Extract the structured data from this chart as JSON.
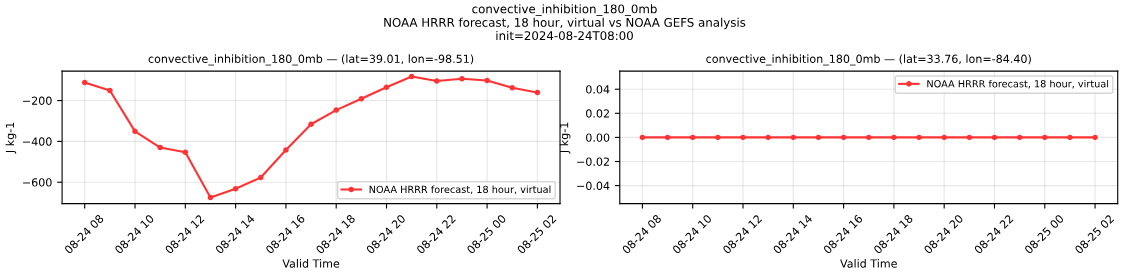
{
  "chart_data": [
    {
      "type": "line",
      "title": "convective_inhibition_180_0mb — (lat=39.01, lon=-98.51)",
      "annotations": [
        "convective_inhibition_180_0mb\nNOAA HRRR forecast, 18 hour, virtual vs NOAA GEFS analysis\ninit=2024-08-24T08:00"
      ],
      "xlabel": "Valid Time",
      "ylabel": "J kg-1",
      "x": [
        "2024-08-24T08:00",
        "2024-08-24T09:00",
        "2024-08-24T10:00",
        "2024-08-24T11:00",
        "2024-08-24T12:00",
        "2024-08-24T13:00",
        "2024-08-24T14:00",
        "2024-08-24T15:00",
        "2024-08-24T16:00",
        "2024-08-24T17:00",
        "2024-08-24T18:00",
        "2024-08-24T19:00",
        "2024-08-24T20:00",
        "2024-08-24T21:00",
        "2024-08-24T22:00",
        "2024-08-24T23:00",
        "2024-08-25T00:00",
        "2024-08-25T01:00",
        "2024-08-25T02:00"
      ],
      "series": [
        {
          "name": "NOAA HRRR forecast, 18 hour, virtual",
          "color": "#ff3333",
          "values": [
            -112,
            -151,
            -351,
            -430,
            -453,
            -675,
            -632,
            -577,
            -442,
            -316,
            -247,
            -191,
            -135,
            -82,
            -104,
            -93,
            -102,
            -137,
            -161
          ]
        }
      ],
      "xlim": [
        "2024-08-24T07:06",
        "2024-08-25T02:54"
      ],
      "xticks": [
        {
          "value": "2024-08-24T08:00",
          "label": "08-24 08"
        },
        {
          "value": "2024-08-24T10:00",
          "label": "08-24 10"
        },
        {
          "value": "2024-08-24T12:00",
          "label": "08-24 12"
        },
        {
          "value": "2024-08-24T14:00",
          "label": "08-24 14"
        },
        {
          "value": "2024-08-24T16:00",
          "label": "08-24 16"
        },
        {
          "value": "2024-08-24T18:00",
          "label": "08-24 18"
        },
        {
          "value": "2024-08-24T20:00",
          "label": "08-24 20"
        },
        {
          "value": "2024-08-24T22:00",
          "label": "08-24 22"
        },
        {
          "value": "2024-08-25T00:00",
          "label": "08-25 00"
        },
        {
          "value": "2024-08-25T02:00",
          "label": "08-25 02"
        }
      ],
      "ylim": [
        -705,
        -56
      ],
      "yticks": [
        {
          "value": -600,
          "label": "−600"
        },
        {
          "value": -400,
          "label": "−400"
        },
        {
          "value": -200,
          "label": "−200"
        }
      ],
      "grid": true,
      "legend": "bottom right",
      "marker": "circle",
      "line_style": "solid"
    },
    {
      "type": "line",
      "title": "convective_inhibition_180_0mb — (lat=33.76, lon=-84.40)",
      "xlabel": "Valid Time",
      "ylabel": "J kg-1",
      "x": [
        "2024-08-24T08:00",
        "2024-08-24T09:00",
        "2024-08-24T10:00",
        "2024-08-24T11:00",
        "2024-08-24T12:00",
        "2024-08-24T13:00",
        "2024-08-24T14:00",
        "2024-08-24T15:00",
        "2024-08-24T16:00",
        "2024-08-24T17:00",
        "2024-08-24T18:00",
        "2024-08-24T19:00",
        "2024-08-24T20:00",
        "2024-08-24T21:00",
        "2024-08-24T22:00",
        "2024-08-24T23:00",
        "2024-08-25T00:00",
        "2024-08-25T01:00",
        "2024-08-25T02:00"
      ],
      "series": [
        {
          "name": "NOAA HRRR forecast, 18 hour, virtual",
          "color": "#ff3333",
          "values": [
            0,
            0,
            0,
            0,
            0,
            0,
            0,
            0,
            0,
            0,
            0,
            0,
            0,
            0,
            0,
            0,
            0,
            0,
            0
          ]
        }
      ],
      "xlim": [
        "2024-08-24T07:06",
        "2024-08-25T02:54"
      ],
      "xticks": [
        {
          "value": "2024-08-24T08:00",
          "label": "08-24 08"
        },
        {
          "value": "2024-08-24T10:00",
          "label": "08-24 10"
        },
        {
          "value": "2024-08-24T12:00",
          "label": "08-24 12"
        },
        {
          "value": "2024-08-24T14:00",
          "label": "08-24 14"
        },
        {
          "value": "2024-08-24T16:00",
          "label": "08-24 16"
        },
        {
          "value": "2024-08-24T18:00",
          "label": "08-24 18"
        },
        {
          "value": "2024-08-24T20:00",
          "label": "08-24 20"
        },
        {
          "value": "2024-08-24T22:00",
          "label": "08-24 22"
        },
        {
          "value": "2024-08-25T00:00",
          "label": "08-25 00"
        },
        {
          "value": "2024-08-25T02:00",
          "label": "08-25 02"
        }
      ],
      "ylim": [
        -0.055,
        0.055
      ],
      "yticks": [
        {
          "value": -0.04,
          "label": "−0.04"
        },
        {
          "value": -0.02,
          "label": "−0.02"
        },
        {
          "value": 0,
          "label": "0.00"
        },
        {
          "value": 0.02,
          "label": "0.02"
        },
        {
          "value": 0.04,
          "label": "0.04"
        }
      ],
      "grid": true,
      "legend": "top right",
      "marker": "circle",
      "line_style": "solid"
    }
  ]
}
